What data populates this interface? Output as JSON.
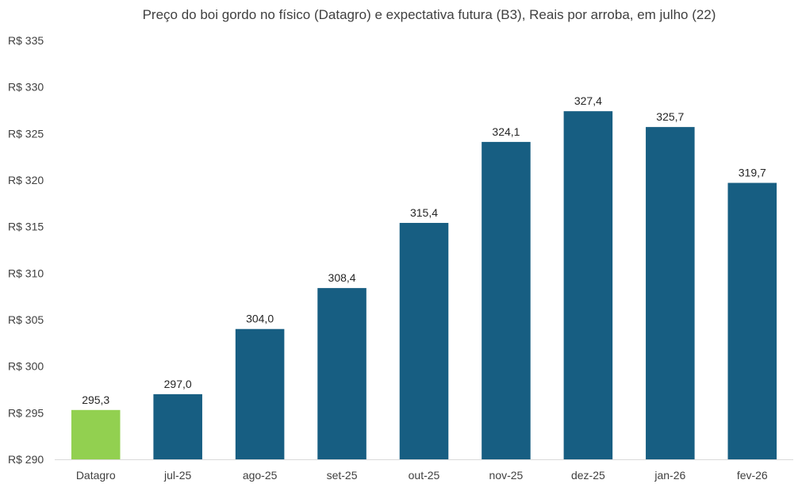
{
  "chart_data": {
    "type": "bar",
    "title": "Preço do boi gordo no físico (Datagro)  e expectativa futura (B3), Reais por arroba, em julho (22)",
    "xlabel": "",
    "ylabel": "",
    "categories": [
      "Datagro",
      "jul-25",
      "ago-25",
      "set-25",
      "out-25",
      "nov-25",
      "dez-25",
      "jan-26",
      "fev-26"
    ],
    "values": [
      295.3,
      297.0,
      304.0,
      308.4,
      315.4,
      324.1,
      327.4,
      325.7,
      319.7
    ],
    "value_labels": [
      "295,3",
      "297,0",
      "304,0",
      "308,4",
      "315,4",
      "324,1",
      "327,4",
      "325,7",
      "319,7"
    ],
    "ylim": [
      290,
      335
    ],
    "yticks": [
      290,
      295,
      300,
      305,
      310,
      315,
      320,
      325,
      330,
      335
    ],
    "ytick_labels": [
      "R$ 290",
      "R$ 295",
      "R$ 300",
      "R$ 305",
      "R$ 310",
      "R$ 315",
      "R$ 320",
      "R$ 325",
      "R$ 330",
      "R$ 335"
    ],
    "bar_colors": [
      "#92d050",
      "#175e82",
      "#175e82",
      "#175e82",
      "#175e82",
      "#175e82",
      "#175e82",
      "#175e82",
      "#175e82"
    ],
    "grid": false,
    "legend": "none"
  }
}
